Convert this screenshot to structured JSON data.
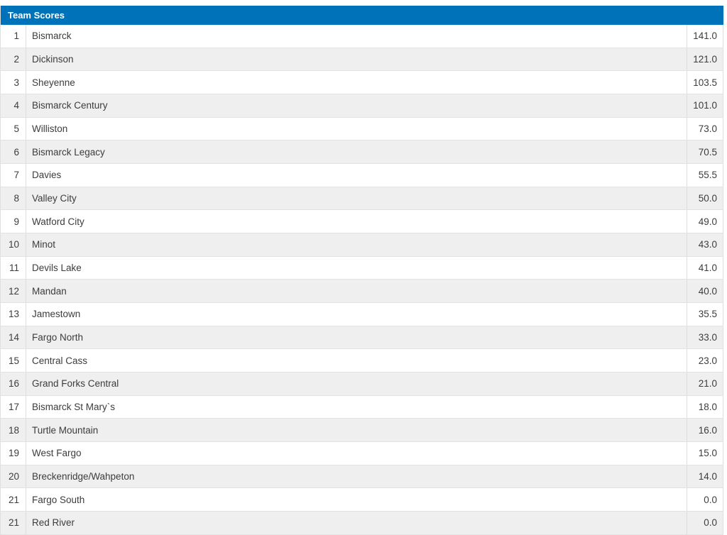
{
  "table": {
    "title": "Team Scores",
    "columns": [
      "rank",
      "team",
      "score"
    ],
    "rows": [
      {
        "rank": "1",
        "team": "Bismarck",
        "score": "141.0"
      },
      {
        "rank": "2",
        "team": "Dickinson",
        "score": "121.0"
      },
      {
        "rank": "3",
        "team": "Sheyenne",
        "score": "103.5"
      },
      {
        "rank": "4",
        "team": "Bismarck Century",
        "score": "101.0"
      },
      {
        "rank": "5",
        "team": "Williston",
        "score": "73.0"
      },
      {
        "rank": "6",
        "team": "Bismarck Legacy",
        "score": "70.5"
      },
      {
        "rank": "7",
        "team": "Davies",
        "score": "55.5"
      },
      {
        "rank": "8",
        "team": "Valley City",
        "score": "50.0"
      },
      {
        "rank": "9",
        "team": "Watford City",
        "score": "49.0"
      },
      {
        "rank": "10",
        "team": "Minot",
        "score": "43.0"
      },
      {
        "rank": "11",
        "team": "Devils Lake",
        "score": "41.0"
      },
      {
        "rank": "12",
        "team": "Mandan",
        "score": "40.0"
      },
      {
        "rank": "13",
        "team": "Jamestown",
        "score": "35.5"
      },
      {
        "rank": "14",
        "team": "Fargo North",
        "score": "33.0"
      },
      {
        "rank": "15",
        "team": "Central Cass",
        "score": "23.0"
      },
      {
        "rank": "16",
        "team": "Grand Forks Central",
        "score": "21.0"
      },
      {
        "rank": "17",
        "team": "Bismarck St Mary`s",
        "score": "18.0"
      },
      {
        "rank": "18",
        "team": "Turtle Mountain",
        "score": "16.0"
      },
      {
        "rank": "19",
        "team": "West Fargo",
        "score": "15.0"
      },
      {
        "rank": "20",
        "team": "Breckenridge/Wahpeton",
        "score": "14.0"
      },
      {
        "rank": "21",
        "team": "Fargo South",
        "score": "0.0"
      },
      {
        "rank": "21",
        "team": "Red River",
        "score": "0.0"
      }
    ],
    "colors": {
      "header_bg": "#0072b9",
      "header_text": "#ffffff",
      "row_bg": "#ffffff",
      "row_alt_bg": "#efefef",
      "border": "#dddddd",
      "text": "#3c3c3c"
    }
  }
}
